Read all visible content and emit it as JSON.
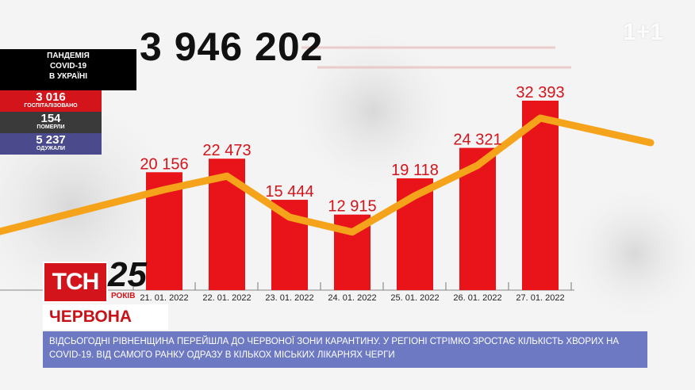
{
  "total_cases": "3 946 202",
  "watermark": "1+1",
  "panel": {
    "title_lines": [
      "ПАНДЕМІЯ",
      "COVID-19",
      "В УКРАЇНІ"
    ],
    "stats": [
      {
        "value": "3 016",
        "label": "ГОСПІТАЛІЗОВАНО",
        "color": "#d4141b"
      },
      {
        "value": "154",
        "label": "ПОМЕРЛИ",
        "color": "#3a3a3a"
      },
      {
        "value": "5 237",
        "label": "ОДУЖАЛИ",
        "color": "#4a4a8c"
      }
    ]
  },
  "chart_data": {
    "type": "bar",
    "categories": [
      "21. 01. 2022",
      "22. 01. 2022",
      "23. 01. 2022",
      "24. 01. 2022",
      "25. 01. 2022",
      "26. 01. 2022",
      "27. 01. 2022"
    ],
    "values": [
      20156,
      22473,
      15444,
      12915,
      19118,
      24321,
      32393
    ],
    "value_labels": [
      "20 156",
      "22 473",
      "15 444",
      "12 915",
      "19 118",
      "24 321",
      "32 393"
    ],
    "ylim": [
      0,
      32393
    ],
    "bar_color": "#e8141a",
    "line_color": "#f5a31a",
    "trend_line": true,
    "title": "",
    "xlabel": "",
    "ylabel": ""
  },
  "lower_third": {
    "logo": "ТСН",
    "logo_25": "25",
    "logo_25_sub": "РОКІВ",
    "headline": "ЧЕРВОНА ЗОНА",
    "ticker": "Відсьогодні Рівненщина перейшла до червоної зони карантину. У регіоні стрімко зростає кількість хворих на COVID-19.  Від самого ранку одразу в кількох міських лікарнях черги"
  }
}
